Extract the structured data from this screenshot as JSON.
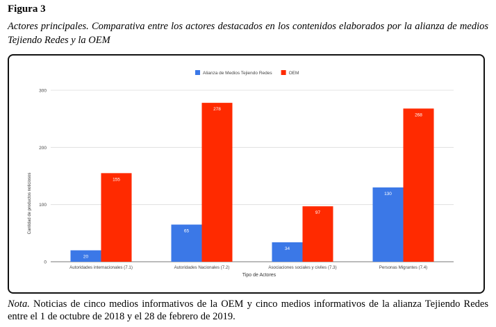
{
  "figure": {
    "label": "Figura 3",
    "caption": "Actores principales. Comparativa entre los actores destacados en los contenidos elaborados por la alianza de medios Tejiendo Redes y la OEM"
  },
  "note": {
    "label": "Nota.",
    "text": " Noticias de cinco medios informativos de la OEM y cinco medios informativos de la alianza Tejiendo Redes entre el 1 de octubre de 2018 y el 28 de febrero de 2019."
  },
  "chart_data": {
    "type": "bar",
    "categories": [
      "Autoridades internacionales (7.1)",
      "Autoridades Nacionales (7.2)",
      "Asociaciones sociales y civiles (7.3)",
      "Personas Migrantes (7.4)"
    ],
    "series": [
      {
        "name": "Alianza de Medios Tejiendo Redes",
        "color": "#3b78e7",
        "values": [
          20,
          65,
          34,
          130
        ]
      },
      {
        "name": "OEM",
        "color": "#ff2a00",
        "values": [
          155,
          278,
          97,
          268
        ]
      }
    ],
    "xlabel": "Tipo de Actores",
    "ylabel": "Cantidad de productos noticiosos",
    "ylim": [
      0,
      300
    ],
    "yticks": [
      0,
      100,
      200,
      300
    ],
    "grid": true,
    "legend": "top-center"
  }
}
